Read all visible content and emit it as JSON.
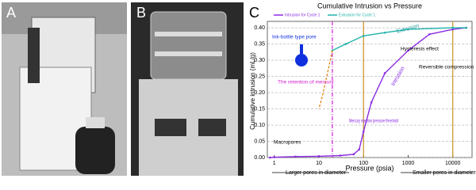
{
  "panels": [
    "A",
    "B"
  ],
  "chart_data": {
    "type": "line",
    "panel": "C",
    "title": "Cumulative Intrusion vs Pressure",
    "xlabel": "Pressure (psia)",
    "ylabel": "Cumulative intrusion (mL/g)",
    "xscale": "log",
    "xlim": [
      0.7,
      27000
    ],
    "xticks": [
      1,
      10,
      100,
      1000,
      10000
    ],
    "ylim": [
      0,
      0.41
    ],
    "yticks": [
      {
        "value": 0,
        "label": "0.00"
      },
      {
        "value": 0.05,
        "label": "0.05"
      },
      {
        "value": 0.1,
        "label": "0.10"
      },
      {
        "value": 0.15,
        "label": "0.15"
      },
      {
        "value": 0.2,
        "label": "0.20"
      },
      {
        "value": 0.25,
        "label": "0.25"
      },
      {
        "value": 0.3,
        "label": "0.30"
      },
      {
        "value": 0.35,
        "label": "0.35"
      },
      {
        "value": 0.4,
        "label": "0.40"
      }
    ],
    "grid": true,
    "series": [
      {
        "name": "Intrusion for Cycle 1",
        "color": "#8a2be2",
        "x": [
          0.8,
          1,
          3,
          10,
          30,
          60,
          80,
          100,
          150,
          300,
          1000,
          3000,
          10000,
          20000
        ],
        "values": [
          0,
          0.001,
          0.003,
          0.004,
          0.006,
          0.01,
          0.025,
          0.08,
          0.17,
          0.26,
          0.33,
          0.38,
          0.395,
          0.4
        ]
      },
      {
        "name": "Extrusion for Cycle 1",
        "color": "#20b2aa",
        "x": [
          20000,
          10000,
          1000,
          300,
          100,
          40,
          20
        ],
        "values": [
          0.4,
          0.4,
          0.395,
          0.385,
          0.375,
          0.35,
          0.33
        ]
      },
      {
        "color": "#e08a1e",
        "dashed": true,
        "x": [
          20,
          15,
          12,
          10
        ],
        "values": [
          0.33,
          0.25,
          0.19,
          0.15
        ]
      }
    ],
    "vlines": [
      {
        "x": 20,
        "color": "#d020d0"
      },
      {
        "x": 100,
        "color": "#c8901e"
      },
      {
        "x": 10000,
        "color": "#c8901e"
      }
    ],
    "annotations": [
      "Extrusion",
      "Intrusion",
      "Hysteresis effect",
      "Reversible compression",
      "Ink-bottle type pore",
      "The retention of mercury",
      "Macropores",
      "Mercury injection pressure threshold",
      "Larger pores in diameter",
      "Smaller pores in diameter"
    ]
  }
}
